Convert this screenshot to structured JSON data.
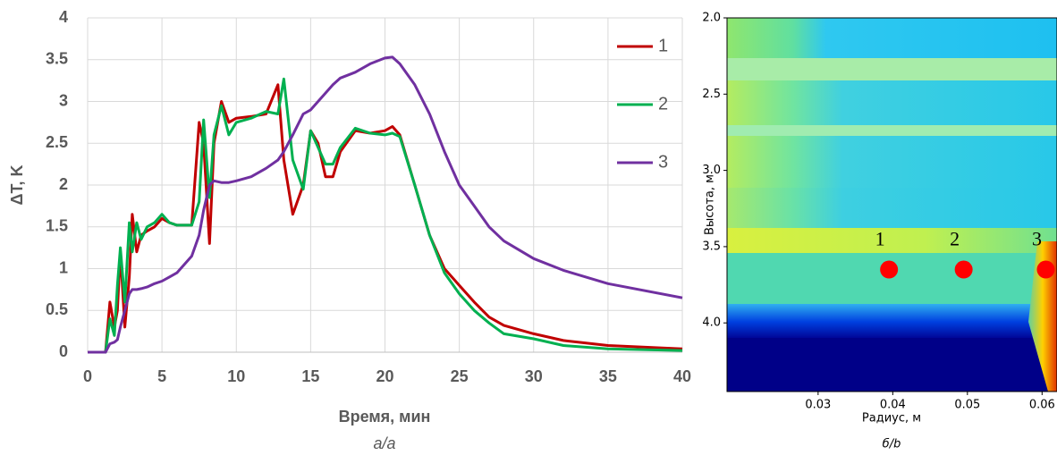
{
  "chart_data": [
    {
      "type": "line",
      "xlabel": "Время, мин",
      "ylabel": "ΔT, K",
      "caption": "а/a",
      "x": [
        0,
        1.2,
        1.5,
        1.8,
        2.0,
        2.2,
        2.5,
        2.8,
        3.0,
        3.3,
        3.6,
        4.0,
        4.5,
        5.0,
        5.5,
        6.0,
        7.0,
        7.5,
        7.8,
        8.2,
        8.5,
        9.0,
        9.5,
        10,
        11,
        12,
        12.8,
        13.2,
        13.8,
        14.5,
        15,
        15.5,
        16,
        16.5,
        17,
        18,
        19,
        20,
        20.5,
        21,
        22,
        23,
        24,
        25,
        26,
        27,
        28,
        30,
        32,
        35,
        40
      ],
      "series": [
        {
          "name": "1",
          "color": "#c00000",
          "values": [
            0,
            0,
            0.6,
            0.3,
            0.5,
            1.2,
            0.3,
            0.9,
            1.65,
            1.2,
            1.4,
            1.45,
            1.5,
            1.6,
            1.55,
            1.52,
            1.52,
            2.75,
            2.5,
            1.3,
            2.5,
            3.0,
            2.75,
            2.8,
            2.82,
            2.85,
            3.2,
            2.3,
            1.65,
            2.0,
            2.65,
            2.5,
            2.1,
            2.1,
            2.4,
            2.65,
            2.62,
            2.65,
            2.7,
            2.6,
            2.0,
            1.4,
            1.0,
            0.8,
            0.6,
            0.42,
            0.32,
            0.22,
            0.14,
            0.08,
            0.04
          ]
        },
        {
          "name": "2",
          "color": "#00b050",
          "values": [
            0,
            0,
            0.4,
            0.2,
            0.8,
            1.25,
            0.6,
            1.55,
            1.2,
            1.55,
            1.35,
            1.5,
            1.55,
            1.65,
            1.55,
            1.52,
            1.52,
            1.8,
            2.78,
            1.85,
            2.6,
            2.95,
            2.6,
            2.75,
            2.8,
            2.88,
            2.85,
            3.27,
            2.3,
            1.95,
            2.65,
            2.45,
            2.25,
            2.25,
            2.45,
            2.68,
            2.62,
            2.6,
            2.62,
            2.58,
            2.0,
            1.4,
            0.95,
            0.7,
            0.5,
            0.35,
            0.22,
            0.16,
            0.08,
            0.04,
            0.02
          ]
        },
        {
          "name": "3",
          "color": "#7030a0",
          "values": [
            0,
            0,
            0.1,
            0.12,
            0.15,
            0.3,
            0.5,
            0.7,
            0.75,
            0.75,
            0.76,
            0.78,
            0.82,
            0.85,
            0.9,
            0.95,
            1.15,
            1.4,
            1.7,
            2.0,
            2.05,
            2.03,
            2.03,
            2.05,
            2.1,
            2.2,
            2.3,
            2.4,
            2.6,
            2.85,
            2.9,
            3.0,
            3.1,
            3.2,
            3.28,
            3.35,
            3.45,
            3.52,
            3.53,
            3.45,
            3.2,
            2.85,
            2.4,
            2.0,
            1.75,
            1.5,
            1.33,
            1.12,
            0.98,
            0.82,
            0.65
          ]
        }
      ],
      "xlim": [
        0,
        40
      ],
      "xticks": [
        0,
        5,
        10,
        15,
        20,
        25,
        30,
        35,
        40
      ],
      "ylim": [
        0,
        4
      ],
      "yticks": [
        0,
        0.5,
        1,
        1.5,
        2,
        2.5,
        3,
        3.5,
        4
      ],
      "grid": true,
      "legend": "right"
    },
    {
      "type": "heatmap",
      "xlabel": "Радиус, м",
      "ylabel": "Высота, м",
      "caption": "б/b",
      "xlim": [
        0.0178,
        0.062
      ],
      "xticks": [
        0.03,
        0.04,
        0.05,
        0.06
      ],
      "ylim": [
        4.45,
        2.0
      ],
      "yticks": [
        {
          "value": 2,
          "label": "2.0"
        },
        2.5,
        {
          "value": 3,
          "label": "3.0"
        },
        3.5,
        {
          "value": 4,
          "label": "4.0"
        }
      ],
      "points": {
        "x": [
          0.0395,
          0.0495,
          0.0605
        ],
        "y": [
          3.65,
          3.65,
          3.65
        ],
        "labels": [
          "1",
          "2",
          "3"
        ],
        "color": "#ff0000"
      }
    }
  ]
}
